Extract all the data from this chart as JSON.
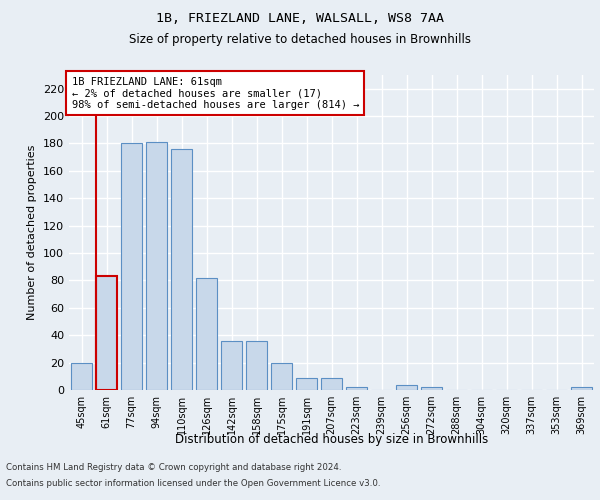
{
  "title1": "1B, FRIEZLAND LANE, WALSALL, WS8 7AA",
  "title2": "Size of property relative to detached houses in Brownhills",
  "xlabel": "Distribution of detached houses by size in Brownhills",
  "ylabel": "Number of detached properties",
  "categories": [
    "45sqm",
    "61sqm",
    "77sqm",
    "94sqm",
    "110sqm",
    "126sqm",
    "142sqm",
    "158sqm",
    "175sqm",
    "191sqm",
    "207sqm",
    "223sqm",
    "239sqm",
    "256sqm",
    "272sqm",
    "288sqm",
    "304sqm",
    "320sqm",
    "337sqm",
    "353sqm",
    "369sqm"
  ],
  "values": [
    20,
    83,
    180,
    181,
    176,
    82,
    36,
    36,
    20,
    9,
    9,
    2,
    0,
    4,
    2,
    0,
    0,
    0,
    0,
    0,
    2
  ],
  "bar_color": "#c8d8ea",
  "bar_edge_color": "#5b8fc4",
  "highlight_index": 1,
  "highlight_edge_color": "#cc0000",
  "annotation_text": "1B FRIEZLAND LANE: 61sqm\n← 2% of detached houses are smaller (17)\n98% of semi-detached houses are larger (814) →",
  "annotation_box_color": "#ffffff",
  "annotation_box_edge": "#cc0000",
  "ylim": [
    0,
    230
  ],
  "yticks": [
    0,
    20,
    40,
    60,
    80,
    100,
    120,
    140,
    160,
    180,
    200,
    220
  ],
  "footer1": "Contains HM Land Registry data © Crown copyright and database right 2024.",
  "footer2": "Contains public sector information licensed under the Open Government Licence v3.0.",
  "bg_color": "#e8eef4",
  "grid_color": "#ffffff"
}
